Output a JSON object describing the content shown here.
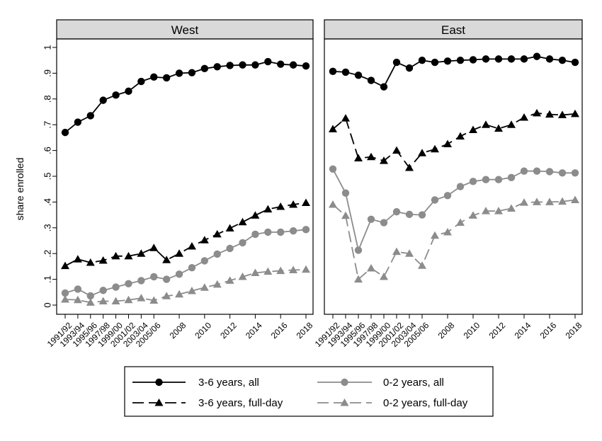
{
  "chart_data": [
    {
      "type": "line",
      "title": "West",
      "ylabel": "share enrolled",
      "ylim": [
        0,
        1
      ],
      "yticks": [
        "0",
        ".1",
        ".2",
        ".3",
        ".4",
        ".5",
        ".6",
        ".7",
        ".8",
        ".9",
        "1"
      ],
      "grid": false,
      "x": [
        "1991/92",
        "1993/94",
        "1995/96",
        "1997/98",
        "1999/00",
        "2001/02",
        "2003/04",
        "2005/06",
        "2007",
        "2008",
        "2009",
        "2010",
        "2011",
        "2012",
        "2013",
        "2014",
        "2015",
        "2016",
        "2017",
        "2018"
      ],
      "xtick_labels": [
        "1991/92",
        "1993/94",
        "1995/96",
        "1997/98",
        "1999/00",
        "2001/02",
        "2003/04",
        "2005/06",
        "2008",
        "2010",
        "2012",
        "2014",
        "2016",
        "2018"
      ],
      "series": [
        {
          "name": "3-6 years, all",
          "values": [
            0.67,
            0.71,
            0.735,
            0.795,
            0.815,
            0.83,
            0.868,
            0.885,
            0.882,
            0.9,
            0.902,
            0.918,
            0.925,
            0.93,
            0.932,
            0.932,
            0.945,
            0.935,
            0.932,
            0.928
          ]
        },
        {
          "name": "3-6 years, full-day",
          "values": [
            0.152,
            0.178,
            0.165,
            0.173,
            0.19,
            0.19,
            0.2,
            0.222,
            0.175,
            0.2,
            0.228,
            0.252,
            0.275,
            0.298,
            0.322,
            0.348,
            0.372,
            0.382,
            0.39,
            0.397
          ]
        },
        {
          "name": "0-2 years, all",
          "values": [
            0.047,
            0.062,
            0.036,
            0.057,
            0.07,
            0.083,
            0.095,
            0.11,
            0.1,
            0.12,
            0.145,
            0.172,
            0.198,
            0.22,
            0.242,
            0.275,
            0.283,
            0.283,
            0.288,
            0.293
          ]
        },
        {
          "name": "0-2 years, full-day",
          "values": [
            0.022,
            0.02,
            0.01,
            0.015,
            0.015,
            0.02,
            0.027,
            0.018,
            0.035,
            0.042,
            0.055,
            0.068,
            0.08,
            0.095,
            0.11,
            0.125,
            0.13,
            0.133,
            0.136,
            0.138
          ]
        }
      ]
    },
    {
      "type": "line",
      "title": "East",
      "ylim": [
        0,
        1
      ],
      "grid": false,
      "x": [
        "1991/92",
        "1993/94",
        "1995/96",
        "1997/98",
        "1999/00",
        "2001/02",
        "2003/04",
        "2005/06",
        "2007",
        "2008",
        "2009",
        "2010",
        "2011",
        "2012",
        "2013",
        "2014",
        "2015",
        "2016",
        "2017",
        "2018"
      ],
      "xtick_labels": [
        "1991/92",
        "1993/94",
        "1995/96",
        "1997/98",
        "1999/00",
        "2001/02",
        "2003/04",
        "2005/06",
        "2008",
        "2010",
        "2012",
        "2014",
        "2016",
        "2018"
      ],
      "series": [
        {
          "name": "3-6 years, all",
          "values": [
            0.907,
            0.904,
            0.892,
            0.872,
            0.847,
            0.942,
            0.92,
            0.95,
            0.942,
            0.947,
            0.95,
            0.952,
            0.955,
            0.955,
            0.955,
            0.955,
            0.965,
            0.955,
            0.95,
            0.942
          ]
        },
        {
          "name": "3-6 years, full-day",
          "values": [
            0.683,
            0.725,
            0.57,
            0.575,
            0.56,
            0.6,
            0.533,
            0.59,
            0.605,
            0.625,
            0.655,
            0.68,
            0.7,
            0.685,
            0.7,
            0.728,
            0.745,
            0.74,
            0.738,
            0.742
          ]
        },
        {
          "name": "0-2 years, all",
          "values": [
            0.528,
            0.435,
            0.213,
            0.333,
            0.32,
            0.362,
            0.352,
            0.35,
            0.408,
            0.425,
            0.46,
            0.48,
            0.487,
            0.487,
            0.495,
            0.52,
            0.52,
            0.518,
            0.513,
            0.513
          ]
        },
        {
          "name": "0-2 years, full-day",
          "values": [
            0.39,
            0.347,
            0.1,
            0.143,
            0.11,
            0.207,
            0.2,
            0.153,
            0.27,
            0.283,
            0.32,
            0.348,
            0.365,
            0.365,
            0.375,
            0.398,
            0.4,
            0.4,
            0.402,
            0.408
          ]
        }
      ]
    }
  ],
  "legend": {
    "placement": "bottom",
    "items": [
      {
        "label": "3-6 years, all",
        "color": "#000000",
        "dash": "solid",
        "marker": "circle"
      },
      {
        "label": "0-2 years, all",
        "color": "#8c8c8c",
        "dash": "solid",
        "marker": "circle"
      },
      {
        "label": "3-6 years, full-day",
        "color": "#000000",
        "dash": "dashed",
        "marker": "triangle"
      },
      {
        "label": "0-2 years, full-day",
        "color": "#8c8c8c",
        "dash": "dashed",
        "marker": "triangle"
      }
    ]
  },
  "styles": {
    "strip_fill": "#d9d9d9",
    "series_colors": [
      "#000000",
      "#000000",
      "#8c8c8c",
      "#8c8c8c"
    ],
    "series_dash": [
      "solid",
      "dashed",
      "solid",
      "dashed"
    ],
    "series_markers": [
      "circle",
      "triangle",
      "circle",
      "triangle"
    ]
  }
}
